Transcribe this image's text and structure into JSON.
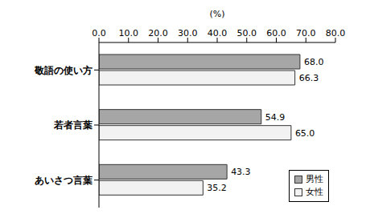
{
  "chart_data": {
    "type": "bar",
    "orientation": "horizontal",
    "xlabel": "(%)",
    "categories": [
      "敬語の使い方",
      "若者言葉",
      "あいさつ言葉"
    ],
    "series": [
      {
        "name": "男性",
        "color": "#a6a6a6",
        "values": [
          68.0,
          54.9,
          43.3
        ],
        "value_labels": [
          "68.0",
          "54.9",
          "43.3"
        ]
      },
      {
        "name": "女性",
        "color": "#f2f2f2",
        "values": [
          66.3,
          65.0,
          35.2
        ],
        "value_labels": [
          "66.3",
          "65.0",
          "35.2"
        ]
      }
    ],
    "xlim": [
      0,
      80
    ],
    "xticks": [
      {
        "value": 0,
        "label": "0.0"
      },
      {
        "value": 10,
        "label": "10.0"
      },
      {
        "value": 20,
        "label": "20.0"
      },
      {
        "value": 30,
        "label": "30.0"
      },
      {
        "value": 40,
        "label": "40.0"
      },
      {
        "value": 50,
        "label": "50.0"
      },
      {
        "value": 60,
        "label": "60.0"
      },
      {
        "value": 70,
        "label": "70.0"
      },
      {
        "value": 80,
        "label": "80.0"
      }
    ],
    "grid": false,
    "legend": "lower right",
    "data_labels": true
  }
}
